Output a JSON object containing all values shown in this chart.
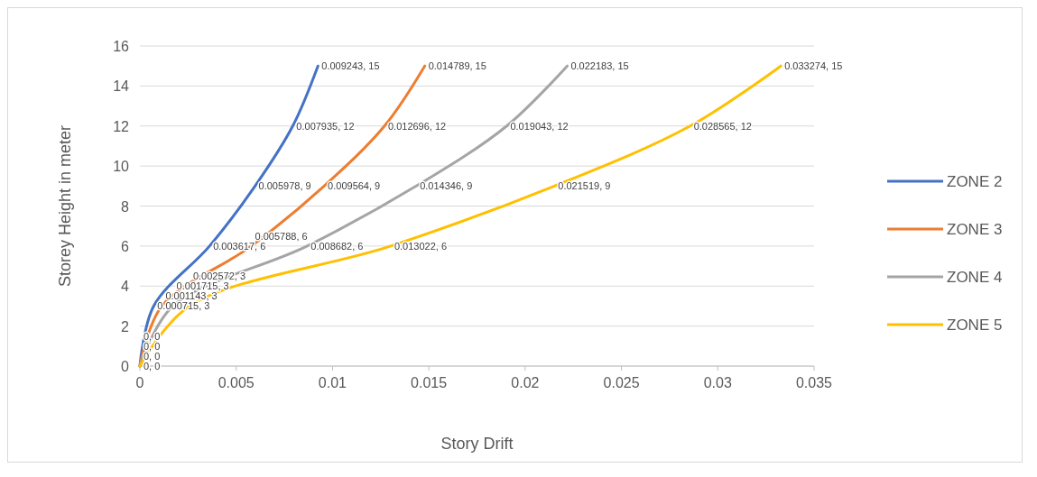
{
  "chart_data": {
    "type": "line",
    "xlabel": "Story Drift",
    "ylabel": "Storey Height  in meter",
    "series": [
      {
        "name": "ZONE 2",
        "color": "#4472c4",
        "x": [
          0,
          0.000715,
          0.003617,
          0.005978,
          0.007935,
          0.009243
        ],
        "values": [
          0,
          3,
          6,
          9,
          12,
          15
        ],
        "value_labels": [
          "0, 0",
          "0.000715, 3",
          "0.003617, 6",
          "0.005978, 9",
          "0.007935, 12",
          "0.009243, 15"
        ]
      },
      {
        "name": "ZONE 3",
        "color": "#ed7d31",
        "x": [
          0,
          0.001143,
          0.005788,
          0.009564,
          0.012696,
          0.014789
        ],
        "values": [
          0,
          3,
          6,
          9,
          12,
          15
        ],
        "value_labels": [
          "0, 0",
          "0.001143, 3",
          "0.005788, 6",
          "0.009564, 9",
          "0.012696, 12",
          "0.014789, 15"
        ]
      },
      {
        "name": "ZONE 4",
        "color": "#a5a5a5",
        "x": [
          0,
          0.001715,
          0.008682,
          0.014346,
          0.019043,
          0.022183
        ],
        "values": [
          0,
          3,
          6,
          9,
          12,
          15
        ],
        "value_labels": [
          "0, 0",
          "0.001715, 3",
          "0.008682, 6",
          "0.014346, 9",
          "0.019043, 12",
          "0.022183, 15"
        ]
      },
      {
        "name": "ZONE 5",
        "color": "#ffc000",
        "x": [
          0,
          0.002572,
          0.013022,
          0.021519,
          0.028565,
          0.033274
        ],
        "values": [
          0,
          3,
          6,
          9,
          12,
          15
        ],
        "value_labels": [
          "0, 0",
          "0.002572, 3",
          "0.013022, 6",
          "0.021519, 9",
          "0.028565, 12",
          "0.033274, 15"
        ]
      }
    ],
    "xlim": [
      0,
      0.035
    ],
    "xticks": [
      0,
      0.005,
      0.01,
      0.015,
      0.02,
      0.025,
      0.03,
      0.035
    ],
    "ylim": [
      0,
      16
    ],
    "yticks": [
      0,
      2,
      4,
      6,
      8,
      10,
      12,
      14,
      16
    ],
    "grid": "y",
    "legend": "right",
    "marker": "none",
    "line_style": "solid"
  }
}
